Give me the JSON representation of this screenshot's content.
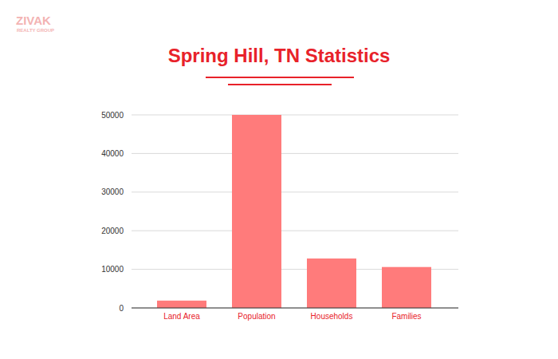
{
  "chart_data": {
    "type": "bar",
    "title": "Spring Hill, TN Statistics",
    "annotations": [
      "ZIVAK",
      "REALTY GROUP"
    ],
    "categories": [
      "Land Area",
      "Population",
      "Households",
      "Families"
    ],
    "values": [
      1900,
      50000,
      12800,
      10600
    ],
    "color": "#ff7b7b",
    "ylim": [
      0,
      50000
    ],
    "yticks": [
      0,
      10000,
      20000,
      30000,
      40000,
      50000
    ],
    "grid": true
  }
}
